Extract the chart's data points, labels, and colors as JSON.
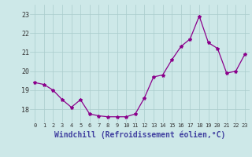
{
  "x": [
    0,
    1,
    2,
    3,
    4,
    5,
    6,
    7,
    8,
    9,
    10,
    11,
    12,
    13,
    14,
    15,
    16,
    17,
    18,
    19,
    20,
    21,
    22,
    23
  ],
  "y": [
    19.4,
    19.3,
    19.0,
    18.5,
    18.1,
    18.5,
    17.75,
    17.65,
    17.6,
    17.6,
    17.6,
    17.75,
    18.6,
    19.7,
    19.8,
    20.6,
    21.3,
    21.7,
    22.9,
    21.5,
    21.2,
    19.9,
    20.0,
    20.9
  ],
  "line_color": "#8B008B",
  "marker": "*",
  "marker_size": 3,
  "bg_color": "#cde8e8",
  "grid_color": "#aacccc",
  "xlabel": "Windchill (Refroidissement éolien,°C)",
  "xlabel_fontsize": 7,
  "xlabel_color": "#4040a0",
  "ylabel_ticks": [
    18,
    19,
    20,
    21,
    22,
    23
  ],
  "xlim": [
    -0.5,
    23.5
  ],
  "ylim": [
    17.3,
    23.5
  ],
  "ytick_fontsize": 6,
  "xtick_fontsize": 5
}
